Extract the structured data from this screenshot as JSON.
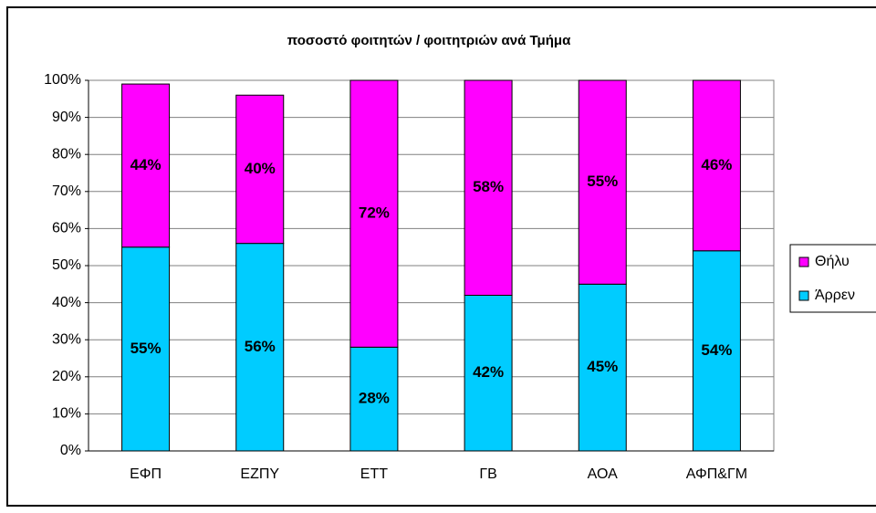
{
  "chart_data": {
    "type": "stacked_bar",
    "title": "ποσοστό φοιτητών / φοιτητριών ανά Τμήμα",
    "categories": [
      "ΕΦΠ",
      "ΕΖΠΥ",
      "ΕΤΤ",
      "ΓΒ",
      "ΑΟΑ",
      "ΑΦΠ&ΓΜ"
    ],
    "series": [
      {
        "name": "Άρρεν",
        "color": "#00ccff",
        "values": [
          55,
          56,
          28,
          42,
          45,
          54
        ],
        "value_labels": [
          "55%",
          "56%",
          "28%",
          "42%",
          "45%",
          "54%"
        ]
      },
      {
        "name": "Θήλυ",
        "color": "#ff00ff",
        "values": [
          44,
          40,
          72,
          58,
          55,
          46
        ],
        "value_labels": [
          "44%",
          "40%",
          "72%",
          "58%",
          "55%",
          "46%"
        ]
      }
    ],
    "ylim": [
      0,
      100
    ],
    "yticks": [
      {
        "value": 0,
        "label": "0%"
      },
      {
        "value": 10,
        "label": "10%"
      },
      {
        "value": 20,
        "label": "20%"
      },
      {
        "value": 30,
        "label": "30%"
      },
      {
        "value": 40,
        "label": "40%"
      },
      {
        "value": 50,
        "label": "50%"
      },
      {
        "value": 60,
        "label": "60%"
      },
      {
        "value": 70,
        "label": "70%"
      },
      {
        "value": 80,
        "label": "80%"
      },
      {
        "value": 90,
        "label": "90%"
      },
      {
        "value": 100,
        "label": "100%"
      }
    ],
    "grid": true,
    "legend": "right"
  }
}
